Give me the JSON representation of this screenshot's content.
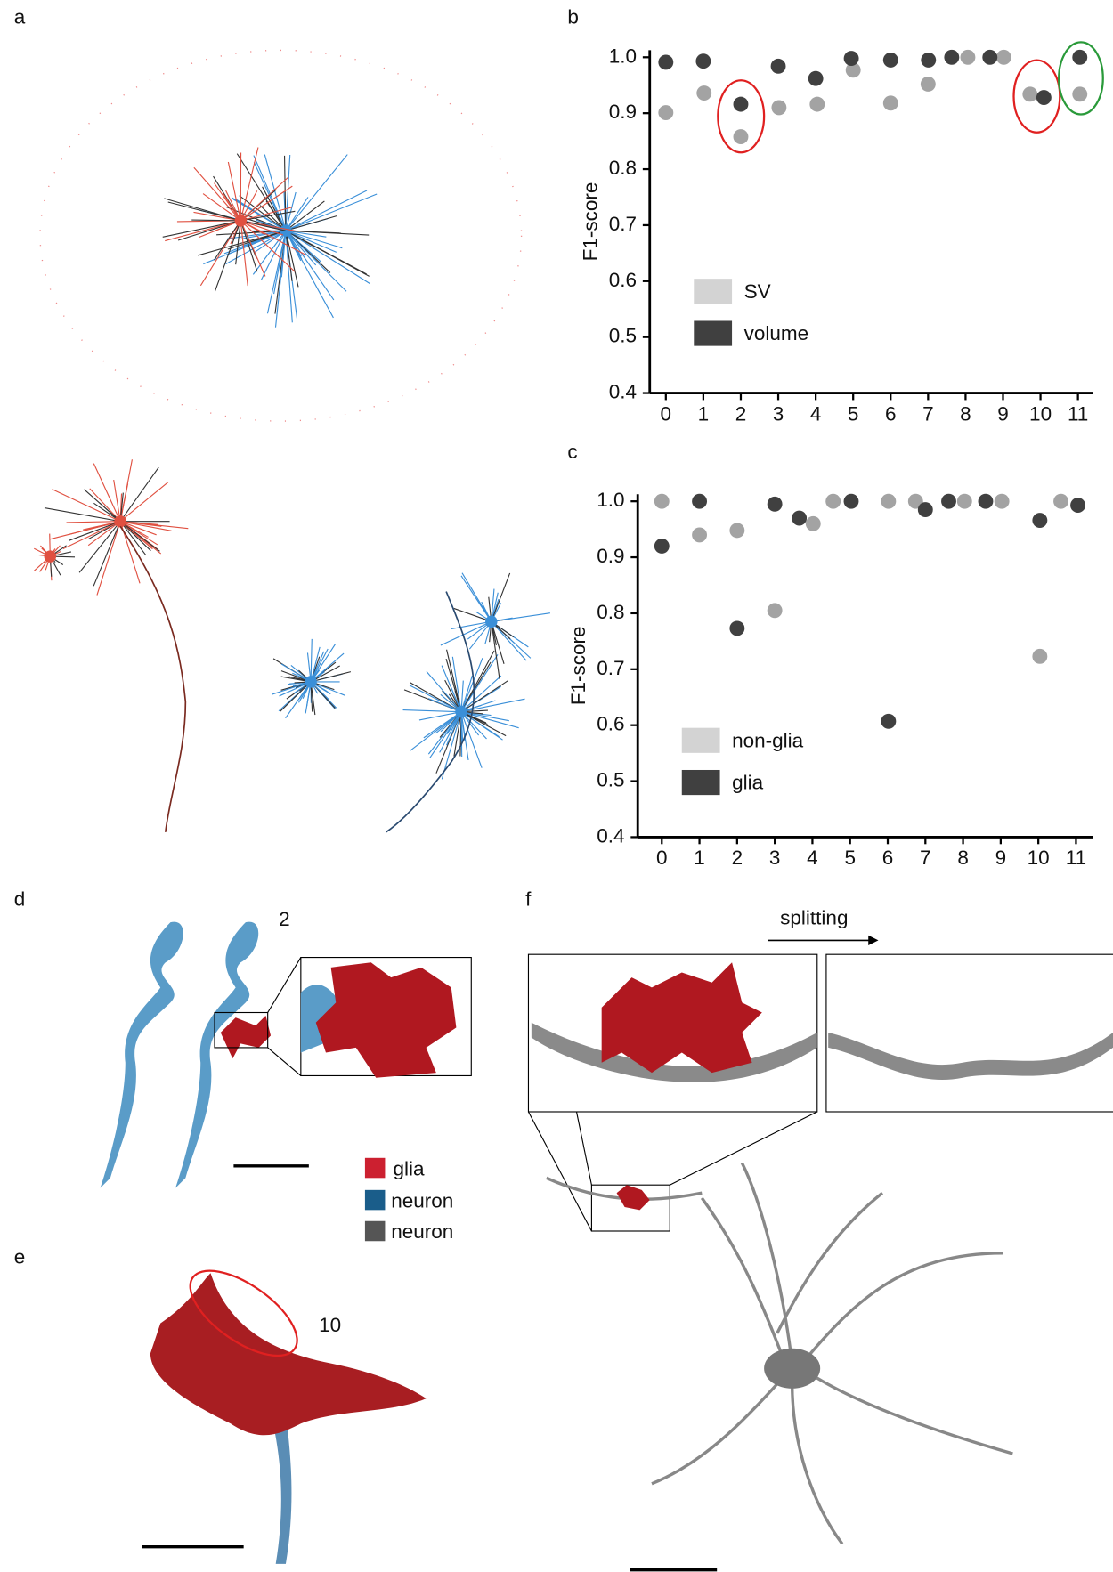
{
  "figure": {
    "panel_labels": [
      "a",
      "b",
      "c",
      "d",
      "e",
      "f"
    ],
    "annotations": {
      "d_label": "2",
      "e_label": "10",
      "arrow": "splitting"
    },
    "legend": [
      "glia",
      "neuron",
      "neuron"
    ]
  },
  "chart_data": [
    {
      "type": "scatter",
      "ylabel": "F1-score",
      "xlim": [
        -0.43,
        11.4
      ],
      "ylim": [
        0.4,
        1.0
      ],
      "xticks": [
        0,
        1,
        2,
        3,
        4,
        5,
        6,
        7,
        8,
        9,
        10,
        11
      ],
      "yticks": [
        0.4,
        0.5,
        0.6,
        0.7,
        0.8,
        0.9,
        {
          "value": 1.0,
          "label": "1.0"
        }
      ],
      "series": [
        {
          "name": "SV",
          "color": "#a3a3a3",
          "x": [
            0,
            1.02,
            2.0,
            3.02,
            4.04,
            5.0,
            6.0,
            7.0,
            8.06,
            9.02,
            9.72,
            11.05
          ],
          "values": [
            0.901,
            0.936,
            0.858,
            0.91,
            0.916,
            0.977,
            0.918,
            0.952,
            1.0,
            1.0,
            0.934,
            0.934
          ]
        },
        {
          "name": "volume",
          "color": "#404040",
          "x": [
            0,
            1.0,
            2.0,
            3.0,
            4.0,
            4.95,
            6.0,
            7.01,
            7.63,
            8.65,
            10.09,
            11.05
          ],
          "values": [
            0.991,
            0.993,
            0.916,
            0.984,
            0.962,
            0.998,
            0.995,
            0.995,
            1.0,
            1.0,
            0.928,
            1.0
          ]
        }
      ]
    },
    {
      "type": "scatter",
      "ylabel": "F1-score",
      "xlim": [
        -0.64,
        11.45
      ],
      "ylim": [
        0.4,
        1.0
      ],
      "xticks": [
        0,
        1,
        2,
        3,
        4,
        5,
        6,
        7,
        8,
        9,
        10,
        11
      ],
      "yticks": [
        0.4,
        0.5,
        0.6,
        0.7,
        0.8,
        0.9,
        {
          "value": 1.0,
          "label": "1.0"
        }
      ],
      "series": [
        {
          "name": "non-glia",
          "color": "#a3a3a3",
          "x": [
            0,
            1.0,
            2.0,
            3.0,
            4.02,
            4.55,
            6.02,
            6.74,
            8.04,
            9.03,
            10.04,
            10.6
          ],
          "values": [
            1.0,
            0.94,
            0.948,
            0.805,
            0.96,
            1.0,
            1.0,
            1.0,
            1.0,
            1.0,
            0.723,
            1.0
          ]
        },
        {
          "name": "glia",
          "color": "#404040",
          "x": [
            0,
            1.0,
            2.0,
            3.0,
            3.65,
            5.03,
            6.02,
            7.0,
            7.62,
            8.6,
            10.04,
            11.05
          ],
          "values": [
            0.92,
            1.0,
            0.773,
            0.995,
            0.97,
            1.0,
            0.607,
            0.985,
            1.0,
            1.0,
            0.966,
            0.993
          ]
        }
      ]
    }
  ]
}
